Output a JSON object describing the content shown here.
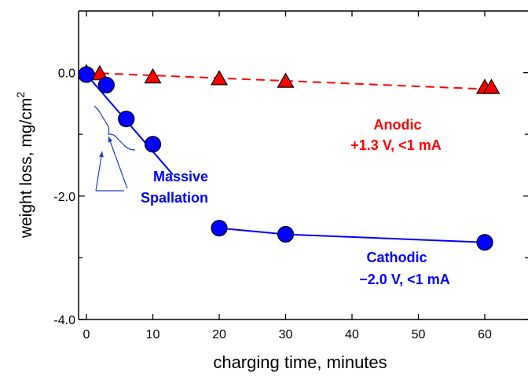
{
  "chart_data": {
    "type": "scatter",
    "xlabel": "charging time, minutes",
    "ylabel_main": "weight loss, mg/cm",
    "ylabel_sup": "2",
    "xlim": [
      -1,
      63
    ],
    "ylim": [
      -4.0,
      1.0
    ],
    "x_ticks": [
      0,
      10,
      20,
      30,
      40,
      50,
      60
    ],
    "x_tick_labels": [
      "0",
      "10",
      "20",
      "30",
      "40",
      "50",
      "60"
    ],
    "y_ticks": [
      0.0,
      -2.0,
      -4.0
    ],
    "y_tick_labels": [
      "0.0",
      "-2.0",
      "-4.0"
    ],
    "grid": false,
    "colors": {
      "anodic": "#ff0000",
      "cathodic": "#0000ff"
    },
    "series": [
      {
        "marker": "triangle",
        "line_style": "dashed",
        "x": [
          0,
          2,
          10,
          20,
          30,
          60,
          61
        ],
        "y": [
          0.0,
          -0.02,
          -0.07,
          -0.1,
          -0.14,
          -0.24,
          -0.24
        ],
        "fit": {
          "x": [
            0,
            61
          ],
          "y": [
            0.0,
            -0.27
          ]
        }
      },
      {
        "marker": "circle",
        "line_style": "solid",
        "x": [
          0,
          3,
          6,
          10,
          20,
          30,
          60
        ],
        "y": [
          -0.03,
          -0.2,
          -0.75,
          -1.16,
          -2.52,
          -2.62,
          -2.75
        ],
        "fit_segments": [
          {
            "x": [
              0,
              13
            ],
            "y": [
              -0.03,
              -1.65
            ]
          },
          {
            "x": [
              20,
              30,
              60
            ],
            "y": [
              -2.52,
              -2.62,
              -2.75
            ]
          }
        ]
      }
    ],
    "annotations": {
      "anodic_line1": "Anodic",
      "anodic_line2": "+1.3 V, <1 mA",
      "cathodic_line1": "Cathodic",
      "cathodic_line2": "−2.0 V, <1 mA",
      "spallation_line1": "Massive",
      "spallation_line2": "Spallation"
    }
  }
}
